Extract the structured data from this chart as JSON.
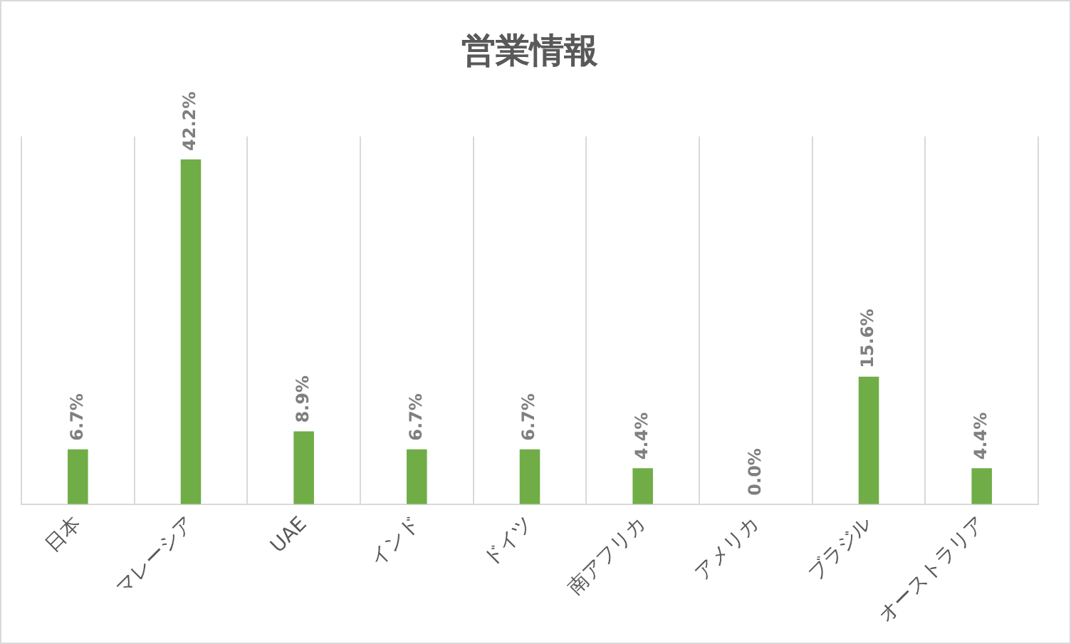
{
  "chart_data": {
    "type": "bar",
    "title": "営業情報",
    "categories": [
      "日本",
      "マレーシア",
      "UAE",
      "インド",
      "ドイツ",
      "南アフリカ",
      "アメリカ",
      "ブラジル",
      "オーストラリア"
    ],
    "values": [
      6.7,
      42.2,
      8.9,
      6.7,
      6.7,
      4.4,
      0.0,
      15.6,
      4.4
    ],
    "value_labels": [
      "6.7%",
      "42.2%",
      "8.9%",
      "6.7%",
      "6.7%",
      "4.4%",
      "0.0%",
      "15.6%",
      "4.4%"
    ],
    "color": "#70ad47",
    "ylim": [
      0,
      45
    ],
    "tick_labels": "x",
    "grid": "x",
    "legend": false
  }
}
